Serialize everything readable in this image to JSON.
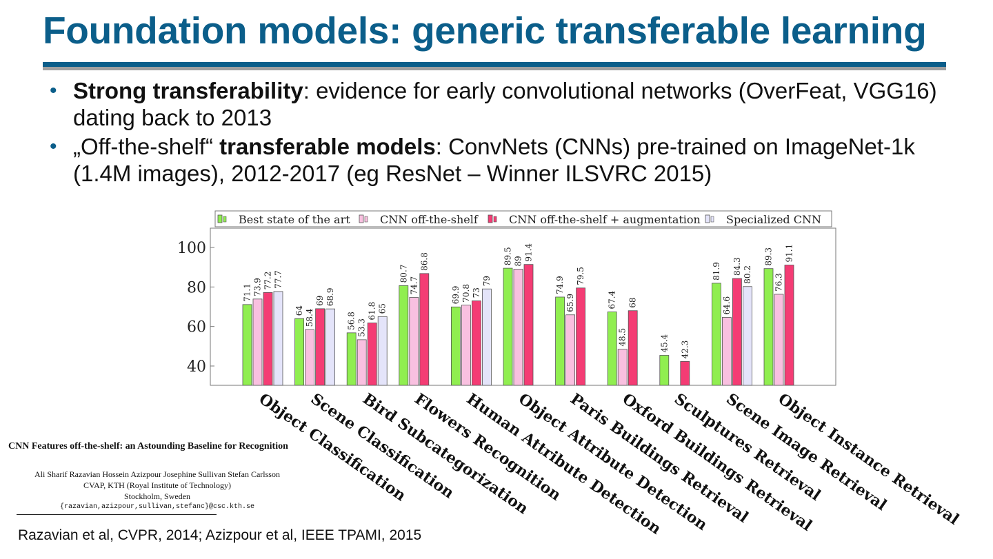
{
  "slide": {
    "title": "Foundation models: generic transferable learning",
    "bullets": [
      {
        "bold": "Strong transferability",
        "rest": ": evidence for early convolutional networks (OverFeat, VGG16) dating back to 2013"
      },
      {
        "pre": "„Off-the-shelf“ ",
        "bold": "transferable models",
        "rest": ": ConvNets (CNNs) pre-trained on ImageNet-1k (1.4M images), 2012-2017 (eg ResNet – Winner ILSVRC 2015)"
      }
    ],
    "citation": "Razavian et al, CVPR, 2014; Azizpour et al, IEEE TPAMI, 2015"
  },
  "paper": {
    "title": "CNN Features off-the-shelf: an Astounding Baseline for Recognition",
    "authors": "Ali Sharif Razavian   Hossein Azizpour   Josephine Sullivan   Stefan Carlsson",
    "institution": "CVAP, KTH (Royal Institute of Technology)",
    "location": "Stockholm, Sweden",
    "email": "{razavian,azizpour,sullivan,stefanc}@csc.kth.se"
  },
  "chart_data": {
    "type": "bar",
    "categories": [
      "Object Classification",
      "Scene Classification",
      "Bird Subcategorization",
      "Flowers Recognition",
      "Human Attribute Detection",
      "Object Attribute Detection",
      "Paris Buildings Retrieval",
      "Oxford Buildings Retrieval",
      "Sculptures Retrieval",
      "Scene Image Retrieval",
      "Object Instance Retrieval"
    ],
    "series": [
      {
        "name": "Best state of the art",
        "color": "#90ee50",
        "values": [
          71.1,
          64,
          56.8,
          80.7,
          69.9,
          89.5,
          74.9,
          67.4,
          45.4,
          81.9,
          89.3
        ]
      },
      {
        "name": "CNN off-the-shelf",
        "color": "#f9c0e0",
        "values": [
          73.9,
          58.4,
          53.3,
          74.7,
          70.8,
          89,
          65.9,
          48.5,
          null,
          64.6,
          76.3
        ]
      },
      {
        "name": "CNN off-the-shelf + augmentation",
        "color": "#f43c74",
        "values": [
          77.2,
          69,
          61.8,
          86.8,
          73,
          91.4,
          79.5,
          68,
          42.3,
          84.3,
          91.1
        ]
      },
      {
        "name": "Specialized CNN",
        "color": "#e4e4fa",
        "values": [
          77.7,
          68.9,
          65,
          null,
          79,
          null,
          null,
          null,
          null,
          80.2,
          null
        ]
      }
    ],
    "ylim": [
      30,
      107
    ],
    "yticks": [
      40,
      60,
      80,
      100
    ],
    "legend": "top",
    "grid": false,
    "xlabel": "",
    "ylabel": ""
  }
}
